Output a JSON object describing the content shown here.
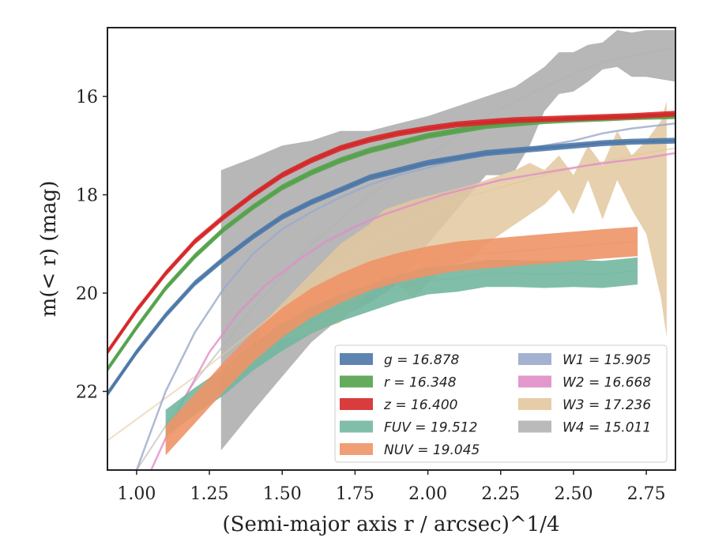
{
  "chart_data": {
    "type": "line",
    "xlabel": "(Semi-major axis r / arcsec)^1/4",
    "ylabel": "m(< r) (mag)",
    "xlim": [
      0.9,
      2.85
    ],
    "ylim": [
      23.6,
      14.6
    ],
    "y_inverted": true,
    "xticks": [
      1.0,
      1.25,
      1.5,
      1.75,
      2.0,
      2.25,
      2.5,
      2.75
    ],
    "xtick_labels": [
      "1.00",
      "1.25",
      "1.50",
      "1.75",
      "2.00",
      "2.25",
      "2.50",
      "2.75"
    ],
    "yticks": [
      16,
      18,
      20,
      22
    ],
    "ytick_labels": [
      "16",
      "18",
      "20",
      "22"
    ],
    "legend_position": "lower-right",
    "series": [
      {
        "name": "g = 16.878",
        "color": "#4c78a8",
        "kind": "band",
        "x": [
          0.9,
          1.0,
          1.1,
          1.2,
          1.3,
          1.4,
          1.5,
          1.6,
          1.7,
          1.8,
          1.9,
          2.0,
          2.1,
          2.2,
          2.3,
          2.4,
          2.5,
          2.6,
          2.7,
          2.85
        ],
        "y": [
          22.05,
          21.2,
          20.45,
          19.8,
          19.3,
          18.85,
          18.45,
          18.15,
          17.9,
          17.65,
          17.5,
          17.35,
          17.25,
          17.15,
          17.1,
          17.05,
          17.0,
          16.95,
          16.92,
          16.9
        ],
        "width": 0.12
      },
      {
        "name": "r = 16.348",
        "color": "#54a24b",
        "kind": "band",
        "x": [
          0.9,
          1.0,
          1.1,
          1.2,
          1.3,
          1.4,
          1.5,
          1.6,
          1.7,
          1.8,
          1.9,
          2.0,
          2.1,
          2.2,
          2.3,
          2.4,
          2.5,
          2.6,
          2.7,
          2.85
        ],
        "y": [
          21.55,
          20.7,
          19.9,
          19.25,
          18.7,
          18.25,
          17.85,
          17.55,
          17.3,
          17.1,
          16.95,
          16.8,
          16.7,
          16.6,
          16.55,
          16.5,
          16.47,
          16.45,
          16.42,
          16.4
        ],
        "width": 0.12
      },
      {
        "name": "z = 16.400",
        "color": "#d62728",
        "kind": "band",
        "x": [
          0.9,
          1.0,
          1.1,
          1.2,
          1.3,
          1.4,
          1.5,
          1.6,
          1.7,
          1.8,
          1.9,
          2.0,
          2.1,
          2.2,
          2.3,
          2.4,
          2.5,
          2.6,
          2.7,
          2.85
        ],
        "y": [
          21.2,
          20.35,
          19.6,
          18.95,
          18.45,
          18.0,
          17.6,
          17.3,
          17.05,
          16.88,
          16.75,
          16.65,
          16.57,
          16.52,
          16.48,
          16.46,
          16.44,
          16.42,
          16.4,
          16.35
        ],
        "width": 0.12
      },
      {
        "name": "FUV = 19.512",
        "color": "#72b7a1",
        "kind": "band",
        "x": [
          1.1,
          1.2,
          1.3,
          1.4,
          1.5,
          1.6,
          1.7,
          1.8,
          1.9,
          2.0,
          2.1,
          2.2,
          2.3,
          2.4,
          2.5,
          2.6,
          2.72
        ],
        "y": [
          22.65,
          22.2,
          21.8,
          21.3,
          20.9,
          20.55,
          20.3,
          20.1,
          19.9,
          19.75,
          19.7,
          19.6,
          19.6,
          19.62,
          19.6,
          19.62,
          19.55
        ],
        "width": 0.55
      },
      {
        "name": "NUV = 19.045",
        "color": "#ee9467",
        "kind": "band",
        "x": [
          1.1,
          1.2,
          1.3,
          1.4,
          1.5,
          1.6,
          1.7,
          1.8,
          1.9,
          2.0,
          2.1,
          2.2,
          2.3,
          2.4,
          2.5,
          2.6,
          2.72
        ],
        "y": [
          23.0,
          22.35,
          21.7,
          21.1,
          20.6,
          20.2,
          19.9,
          19.65,
          19.48,
          19.35,
          19.25,
          19.2,
          19.15,
          19.1,
          19.05,
          19.0,
          18.95
        ],
        "width": 0.6
      },
      {
        "name": "W1 = 15.905",
        "color": "#9aa9cb",
        "kind": "line",
        "x": [
          1.0,
          1.1,
          1.2,
          1.3,
          1.4,
          1.5,
          1.6,
          1.7,
          1.8,
          1.9,
          2.0,
          2.1,
          2.2,
          2.3,
          2.4,
          2.5,
          2.6,
          2.7,
          2.85
        ],
        "y": [
          23.6,
          22.0,
          20.8,
          19.9,
          19.2,
          18.7,
          18.35,
          18.05,
          17.8,
          17.6,
          17.45,
          17.3,
          17.2,
          17.1,
          17.0,
          16.9,
          16.75,
          16.65,
          16.55
        ]
      },
      {
        "name": "W2 = 16.668",
        "color": "#e08dc7",
        "kind": "line",
        "x": [
          1.05,
          1.15,
          1.25,
          1.35,
          1.45,
          1.55,
          1.65,
          1.75,
          1.85,
          1.95,
          2.05,
          2.15,
          2.25,
          2.35,
          2.45,
          2.55,
          2.65,
          2.75,
          2.85
        ],
        "y": [
          23.6,
          22.3,
          21.2,
          20.4,
          19.8,
          19.35,
          18.95,
          18.65,
          18.4,
          18.2,
          18.0,
          17.85,
          17.7,
          17.6,
          17.5,
          17.4,
          17.32,
          17.25,
          17.15
        ]
      },
      {
        "name": "W3 = 17.236",
        "color": "#e3c89f",
        "kind": "band",
        "x_upper": [
          1.42,
          1.55,
          1.7,
          1.8,
          1.85,
          1.95,
          2.05,
          2.15,
          2.2,
          2.25,
          2.3,
          2.35,
          2.4,
          2.45,
          2.5,
          2.55,
          2.6,
          2.65,
          2.7,
          2.75,
          2.8,
          2.82
        ],
        "y_upper": [
          20.7,
          19.9,
          19.0,
          18.6,
          18.3,
          18.1,
          17.95,
          17.8,
          17.7,
          17.6,
          17.5,
          17.35,
          17.5,
          17.2,
          17.6,
          17.0,
          17.4,
          16.7,
          17.2,
          16.9,
          16.5,
          16.1
        ],
        "x_lower": [
          1.42,
          1.55,
          1.7,
          1.8,
          1.85,
          1.95,
          2.05,
          2.15,
          2.2,
          2.25,
          2.3,
          2.35,
          2.4,
          2.45,
          2.5,
          2.55,
          2.6,
          2.65,
          2.7,
          2.75,
          2.8,
          2.82
        ],
        "y_lower": [
          21.0,
          20.9,
          20.6,
          20.0,
          19.6,
          20.1,
          19.5,
          19.3,
          19.0,
          18.8,
          18.6,
          18.4,
          18.2,
          17.9,
          18.4,
          17.7,
          18.5,
          17.7,
          18.3,
          18.8,
          20.1,
          20.9
        ],
        "line_x": [
          0.9,
          1.2,
          1.5,
          1.8,
          2.1,
          2.4,
          2.7,
          2.85
        ],
        "line_y": [
          23.0,
          21.7,
          20.3,
          19.0,
          18.1,
          17.6,
          17.2,
          17.05
        ]
      },
      {
        "name": "W4 = 15.011",
        "color": "#b3b3b3",
        "kind": "band",
        "x_upper": [
          1.29,
          1.4,
          1.5,
          1.6,
          1.7,
          1.8,
          1.9,
          2.0,
          2.1,
          2.2,
          2.3,
          2.4,
          2.45,
          2.5,
          2.55,
          2.6,
          2.65,
          2.7,
          2.75,
          2.85
        ],
        "y_upper": [
          17.5,
          17.25,
          17.0,
          16.9,
          16.7,
          16.7,
          16.55,
          16.4,
          16.2,
          16.0,
          15.8,
          15.4,
          15.1,
          15.1,
          14.95,
          14.9,
          14.65,
          14.7,
          14.65,
          14.65
        ],
        "x_lower": [
          1.29,
          1.4,
          1.5,
          1.6,
          1.7,
          1.8,
          1.9,
          2.0,
          2.1,
          2.2,
          2.25,
          2.3,
          2.35,
          2.4,
          2.45,
          2.5,
          2.55,
          2.6,
          2.65,
          2.7,
          2.75,
          2.85
        ],
        "y_lower": [
          23.2,
          22.4,
          21.7,
          21.0,
          20.5,
          20.2,
          19.8,
          19.0,
          18.3,
          17.6,
          17.6,
          17.5,
          17.0,
          16.3,
          15.95,
          15.9,
          15.7,
          15.45,
          15.4,
          15.6,
          15.6,
          15.7
        ],
        "line_x": [
          1.0,
          1.2,
          1.4,
          1.6,
          1.8,
          2.0,
          2.2,
          2.4,
          2.6,
          2.85
        ],
        "line_y": [
          23.6,
          21.8,
          20.3,
          19.0,
          18.0,
          17.2,
          16.4,
          15.8,
          15.3,
          15.0
        ]
      }
    ]
  }
}
